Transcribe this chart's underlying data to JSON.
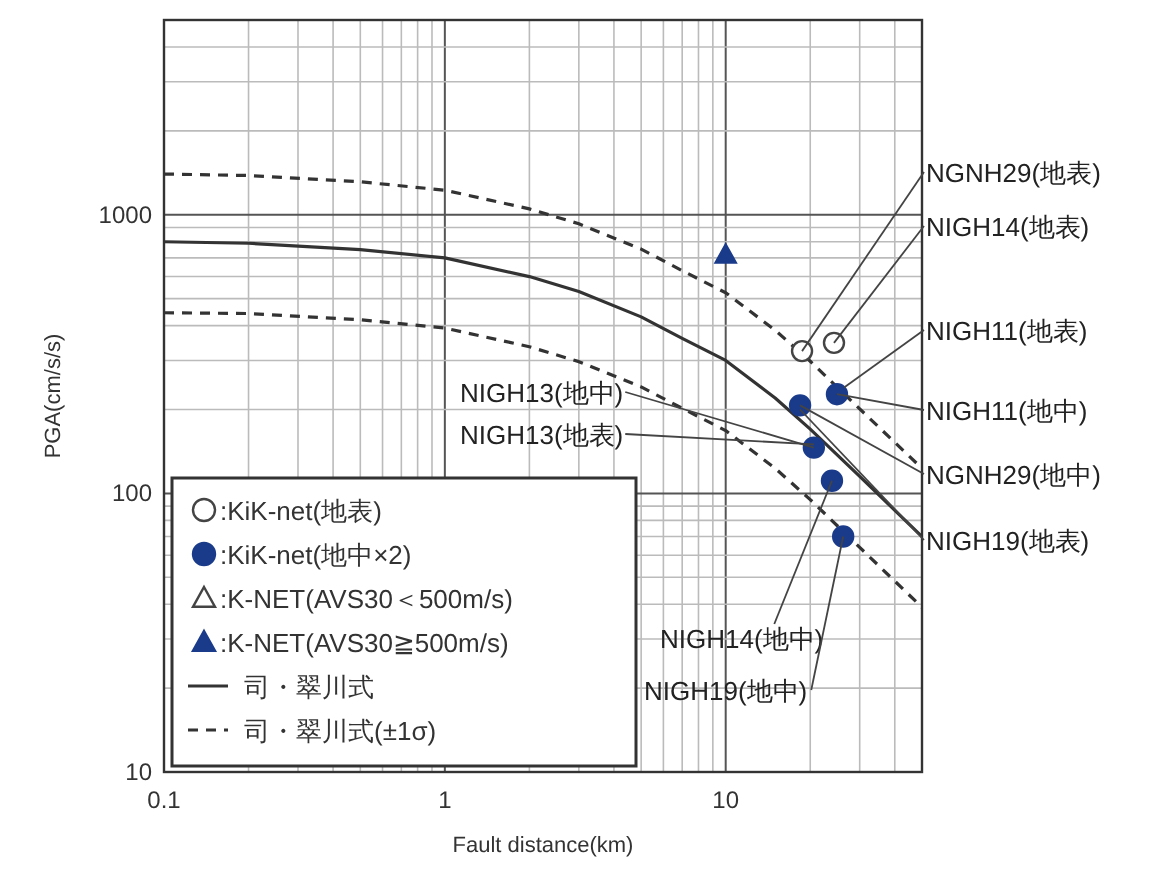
{
  "chart_data": {
    "type": "scatter",
    "xlabel": "Fault distance(km)",
    "ylabel": "PGA(cm/s/s)",
    "log": "xy",
    "grid": true,
    "legend": "bottom left",
    "xlim": [
      0.1,
      50
    ],
    "ylim": [
      10,
      5000
    ],
    "xticks": [
      0.1,
      1,
      10
    ],
    "yticks": [
      10,
      100,
      1000
    ],
    "series": [
      {
        "name": ":KiK-net(地表)",
        "marker": "circle",
        "color": "#ffffff",
        "x": [
          18.7,
          24.3
        ],
        "values": [
          324,
          347
        ]
      },
      {
        "name": ":KiK-net(地中×2)",
        "marker": "circle",
        "color": "#1a3a8a",
        "x": [
          18.4,
          24.9,
          20.6,
          23.9,
          26.2
        ],
        "values": [
          207,
          227,
          146,
          111,
          70
        ]
      },
      {
        "name": ":K-NET(AVS30＜500m/s)",
        "marker": "triangle",
        "color": "#ffffff"
      },
      {
        "name": ":K-NET(AVS30≧500m/s)",
        "marker": "triangle",
        "color": "#1a3a8a",
        "x": [
          10
        ],
        "values": [
          720
        ]
      },
      {
        "name": "司・翠川式",
        "type": "line",
        "line_style": "solid",
        "color": "#333333",
        "x": [
          0.1,
          0.2,
          0.5,
          1,
          2,
          3,
          5,
          7,
          10,
          15,
          20,
          30,
          50
        ],
        "values": [
          800,
          790,
          750,
          700,
          600,
          530,
          430,
          360,
          300,
          220,
          170,
          115,
          70
        ]
      },
      {
        "name": "司・翠川式(±1σ)",
        "type": "line",
        "line_style": "dashed",
        "color": "#333333",
        "x": [
          0.1,
          0.2,
          0.5,
          1,
          2,
          3,
          5,
          7,
          10,
          15,
          20,
          30,
          50
        ],
        "values": [
          1400,
          1383,
          1313,
          1225,
          1050,
          928,
          753,
          630,
          525,
          385,
          298,
          201,
          123
        ]
      },
      {
        "type": "line",
        "line_style": "dashed",
        "color": "#333333",
        "x": [
          0.1,
          0.2,
          0.5,
          1,
          2,
          3,
          5,
          7,
          10,
          15,
          20,
          30,
          50
        ],
        "values": [
          445,
          442,
          420,
          392,
          336,
          297,
          241,
          202,
          168,
          123,
          95,
          64,
          39
        ]
      }
    ],
    "annotations": [
      {
        "text": "NGNH29(地表)",
        "x": 18.7,
        "y": 324
      },
      {
        "text": "NIGH14(地表)",
        "x": 24.3,
        "y": 347
      },
      {
        "text": "NIGH11(地表)",
        "x": 26.4,
        "y": 240
      },
      {
        "text": "NIGH11(地中)",
        "x": 24.9,
        "y": 227
      },
      {
        "text": "NIGH13(地中)",
        "x": 20.6,
        "y": 146
      },
      {
        "text": "NIGH13(地表)",
        "x": 20.6,
        "y": 150
      },
      {
        "text": "NGNH29(地中)",
        "x": 18.4,
        "y": 207
      },
      {
        "text": "NIGH19(地表)",
        "x": 18.4,
        "y": 200
      },
      {
        "text": "NIGH14(地中)",
        "x": 23.9,
        "y": 111
      },
      {
        "text": "NIGH19(地中)",
        "x": 26.2,
        "y": 70
      }
    ]
  }
}
